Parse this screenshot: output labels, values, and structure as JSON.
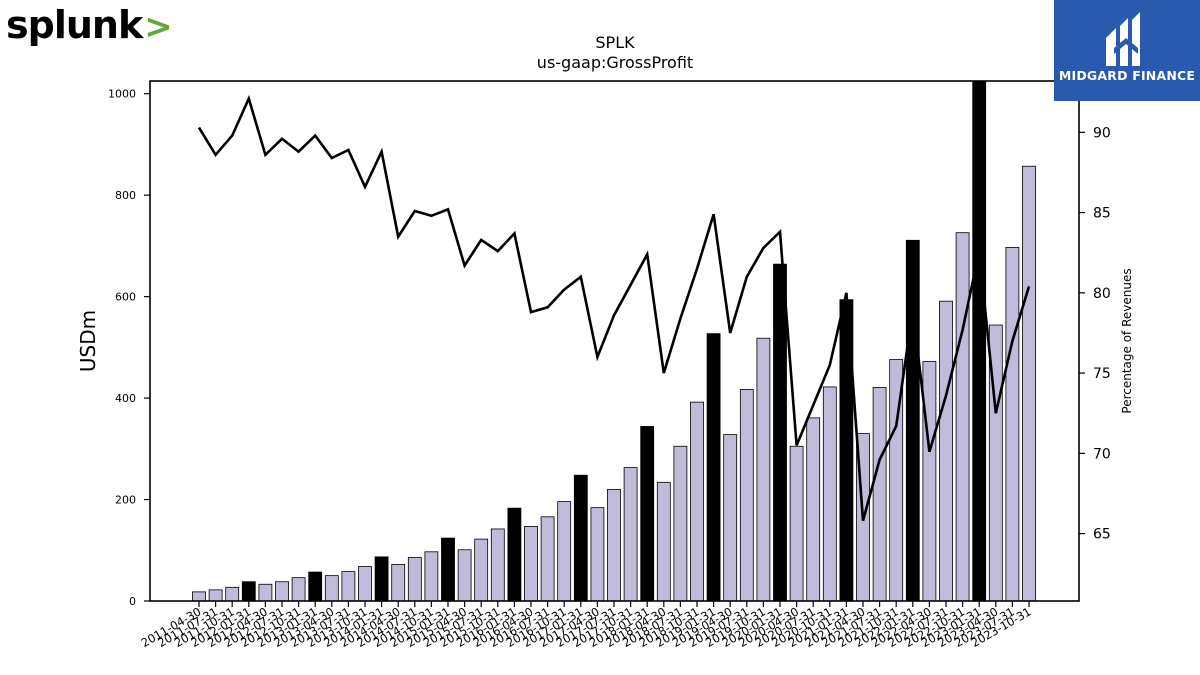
{
  "branding": {
    "left_logo_text": "splunk",
    "left_logo_mark": ">",
    "right_logo_text": "MIDGARD FINANCE"
  },
  "colors": {
    "bar_fill": "#bfbbdb",
    "bar_highlight": "#000000",
    "line": "#000000",
    "brand_green": "#65a637",
    "brand_blue": "#2a5aad"
  },
  "chart_data": {
    "type": "bar",
    "title": "SPLK",
    "subtitle": "us-gaap:GrossProfit",
    "ylabel": "USDm",
    "y2label": "Percentage of Revenues",
    "ylim": [
      0,
      1025
    ],
    "y2lim": [
      60.8,
      93.2
    ],
    "yticks": [
      0,
      200,
      400,
      600,
      800,
      1000
    ],
    "y2ticks": [
      65,
      70,
      75,
      80,
      85,
      90
    ],
    "categories": [
      "2011-04-30",
      "2011-07-31",
      "2011-10-31",
      "2012-01-31",
      "2012-04-30",
      "2012-07-31",
      "2012-10-31",
      "2013-01-31",
      "2013-04-30",
      "2013-07-31",
      "2013-10-31",
      "2014-01-31",
      "2014-04-30",
      "2014-07-31",
      "2014-10-31",
      "2015-01-31",
      "2015-04-30",
      "2015-07-31",
      "2015-10-31",
      "2016-01-31",
      "2016-04-30",
      "2016-07-31",
      "2016-10-31",
      "2017-01-31",
      "2017-04-30",
      "2017-07-31",
      "2017-10-31",
      "2018-01-31",
      "2018-04-30",
      "2018-07-31",
      "2018-10-31",
      "2019-01-31",
      "2019-04-30",
      "2019-07-31",
      "2019-10-31",
      "2020-01-31",
      "2020-04-30",
      "2020-07-31",
      "2020-10-31",
      "2021-01-31",
      "2021-04-30",
      "2021-07-31",
      "2021-10-31",
      "2022-01-31",
      "2022-04-30",
      "2022-07-31",
      "2022-10-31",
      "2023-01-31",
      "2023-04-30",
      "2023-07-31",
      "2023-10-31"
    ],
    "series": [
      {
        "type": "bar",
        "values": [
          18,
          22,
          27,
          38,
          33,
          38,
          46,
          57,
          50,
          58,
          68,
          87,
          72,
          86,
          97,
          124,
          101,
          122,
          142,
          183,
          147,
          166,
          196,
          248,
          184,
          220,
          263,
          344,
          234,
          305,
          392,
          527,
          328,
          417,
          518,
          664,
          305,
          361,
          422,
          594,
          330,
          421,
          476,
          711,
          472,
          591,
          726,
          1025,
          544,
          697,
          857
        ],
        "highlight": [
          false,
          false,
          false,
          true,
          false,
          false,
          false,
          true,
          false,
          false,
          false,
          true,
          false,
          false,
          false,
          true,
          false,
          false,
          false,
          true,
          false,
          false,
          false,
          true,
          false,
          false,
          false,
          true,
          false,
          false,
          false,
          true,
          false,
          false,
          false,
          true,
          false,
          false,
          false,
          true,
          false,
          false,
          false,
          true,
          false,
          false,
          false,
          true,
          false,
          false,
          false
        ]
      },
      {
        "type": "line",
        "axis": "secondary",
        "values": [
          90.3,
          88.6,
          89.8,
          92.1,
          88.6,
          89.6,
          88.8,
          89.8,
          88.4,
          88.9,
          86.6,
          88.8,
          83.5,
          85.1,
          84.8,
          85.2,
          81.7,
          83.3,
          82.6,
          83.7,
          78.8,
          79.1,
          80.2,
          81.0,
          76.0,
          78.6,
          80.5,
          82.4,
          75.0,
          78.4,
          81.5,
          84.9,
          77.5,
          81.0,
          82.8,
          83.8,
          70.5,
          73.0,
          75.5,
          80.0,
          65.8,
          69.6,
          71.7,
          79.0,
          70.1,
          73.6,
          77.7,
          82.6,
          72.5,
          77.0,
          80.4
        ]
      }
    ]
  }
}
